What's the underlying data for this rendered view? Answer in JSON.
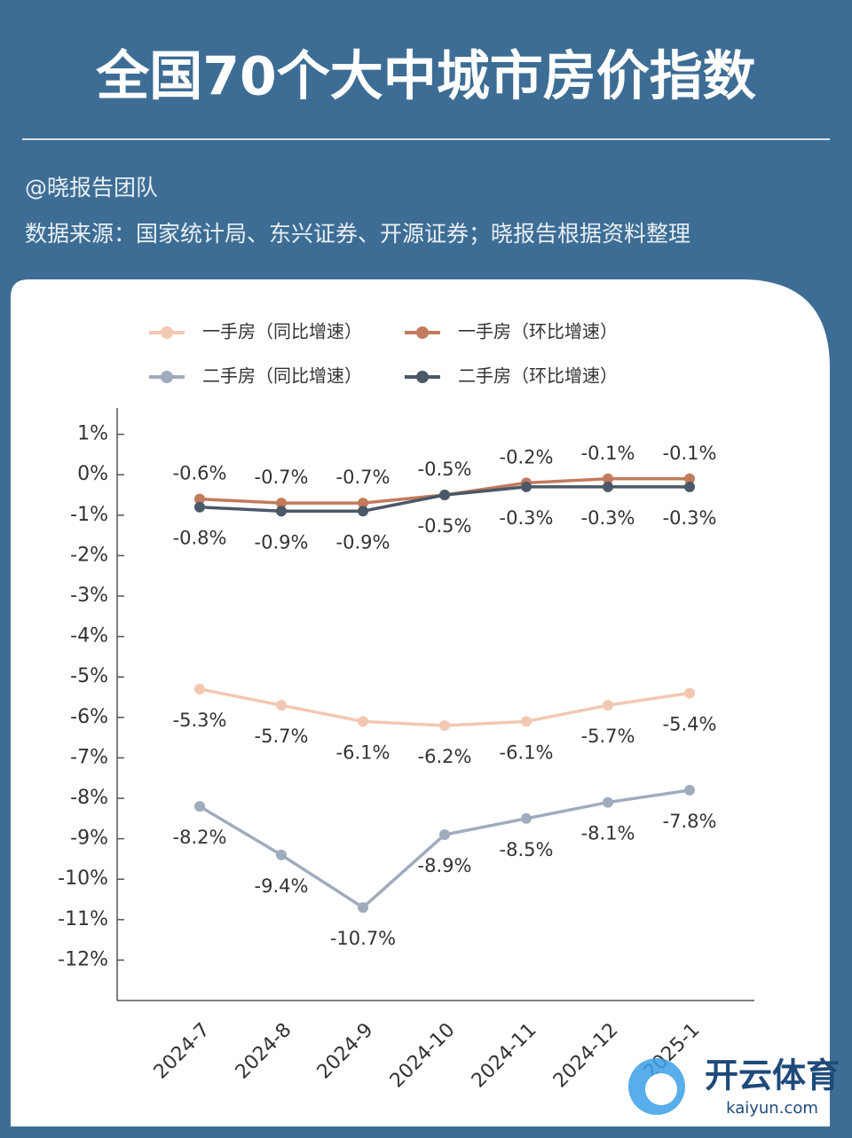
{
  "header": {
    "title": "全国70个大中城市房价指数",
    "author": "@晓报告团队",
    "source": "数据来源：国家统计局、东兴证券、开源证券；晓报告根据资料整理"
  },
  "chart_data": {
    "type": "line",
    "categories": [
      "2024-7",
      "2024-8",
      "2024-9",
      "2024-10",
      "2024-11",
      "2024-12",
      "2025-1"
    ],
    "series": [
      {
        "name": "一手房（同比增速）",
        "color": "#f2c8b2",
        "values": [
          -5.3,
          -5.7,
          -6.1,
          -6.2,
          -6.1,
          -5.7,
          -5.4
        ],
        "value_labels": [
          "-5.3%",
          "-5.7%",
          "-6.1%",
          "-6.2%",
          "-6.1%",
          "-5.7%",
          "-5.4%"
        ]
      },
      {
        "name": "一手房（环比增速）",
        "color": "#c27b5c",
        "values": [
          -0.6,
          -0.7,
          -0.7,
          -0.5,
          -0.2,
          -0.1,
          -0.1
        ],
        "value_labels": [
          "-0.6%",
          "-0.7%",
          "-0.7%",
          "-0.5%",
          "-0.2%",
          "-0.1%",
          "-0.1%"
        ]
      },
      {
        "name": "二手房（同比增速）",
        "color": "#a0acbd",
        "values": [
          -8.2,
          -9.4,
          -10.7,
          -8.9,
          -8.5,
          -8.1,
          -7.8
        ],
        "value_labels": [
          "-8.2%",
          "-9.4%",
          "-10.7%",
          "-8.9%",
          "-8.5%",
          "-8.1%",
          "-7.8%"
        ]
      },
      {
        "name": "二手房（环比增速）",
        "color": "#4a5868",
        "values": [
          -0.8,
          -0.9,
          -0.9,
          -0.5,
          -0.3,
          -0.3,
          -0.3
        ],
        "value_labels": [
          "-0.8%",
          "-0.9%",
          "-0.9%",
          "-0.5%",
          "-0.3%",
          "-0.3%",
          "-0.3%"
        ]
      }
    ],
    "ylim": [
      -13,
      1.65
    ],
    "yticks": [
      {
        "value": 1,
        "label": "1%"
      },
      {
        "value": 0,
        "label": "0%"
      },
      {
        "value": -1,
        "label": "-1%"
      },
      {
        "value": -2,
        "label": "-2%"
      },
      {
        "value": -3,
        "label": "-3%"
      },
      {
        "value": -4,
        "label": "-4%"
      },
      {
        "value": -5,
        "label": "-5%"
      },
      {
        "value": -6,
        "label": "-6%"
      },
      {
        "value": -7,
        "label": "-7%"
      },
      {
        "value": -8,
        "label": "-8%"
      },
      {
        "value": -9,
        "label": "-9%"
      },
      {
        "value": -10,
        "label": "-10%"
      },
      {
        "value": -11,
        "label": "-11%"
      },
      {
        "value": -12,
        "label": "-12%"
      }
    ]
  },
  "watermark": {
    "brand": "开云体育",
    "site": "kaiyun.com"
  }
}
